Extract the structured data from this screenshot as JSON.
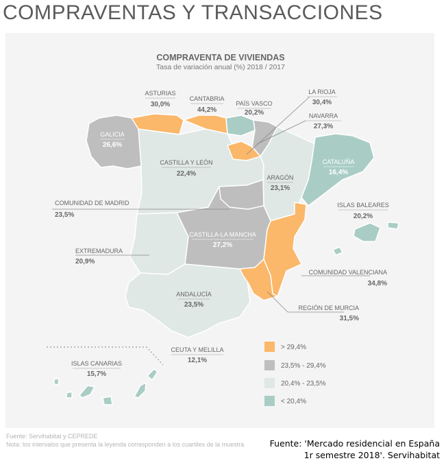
{
  "page_title": "COMPRAVENTAS Y TRANSACCIONES",
  "map": {
    "title": "COMPRAVENTA DE VIVIENDAS",
    "subtitle": "Tasa de variación anual (%) 2018 / 2017",
    "regions": [
      {
        "id": "asturias",
        "name": "ASTURIAS",
        "value": "30,0%"
      },
      {
        "id": "cantabria",
        "name": "CANTABRIA",
        "value": "44,2%"
      },
      {
        "id": "pais-vasco",
        "name": "PAÍS VASCO",
        "value": "20,2%"
      },
      {
        "id": "la-rioja",
        "name": "LA RIOJA",
        "value": "30,4%"
      },
      {
        "id": "navarra",
        "name": "NAVARRA",
        "value": "27,3%"
      },
      {
        "id": "galicia",
        "name": "GALICIA",
        "value": "26,6%"
      },
      {
        "id": "castilla-y-leon",
        "name": "CASTILLA Y LEÓN",
        "value": "22,4%"
      },
      {
        "id": "cataluna",
        "name": "CATALUÑA",
        "value": "16,4%"
      },
      {
        "id": "aragon",
        "name": "ARAGÓN",
        "value": "23,1%"
      },
      {
        "id": "islas-baleares",
        "name": "ISLAS BALEARES",
        "value": "20,2%"
      },
      {
        "id": "comunidad-de-madrid",
        "name": "COMUNIDAD DE MADRID",
        "value": "23,5%"
      },
      {
        "id": "castilla-la-mancha",
        "name": "CASTILLA-LA MANCHA",
        "value": "27,2%"
      },
      {
        "id": "extremadura",
        "name": "EXTREMADURA",
        "value": "20,9%"
      },
      {
        "id": "comunidad-valenciana",
        "name": "COMUNIDAD VALENCIANA",
        "value": "34,8%"
      },
      {
        "id": "andalucia",
        "name": "ANDALUCÍA",
        "value": "23,5%"
      },
      {
        "id": "region-de-murcia",
        "name": "REGIÓN DE MURCIA",
        "value": "31,5%"
      },
      {
        "id": "ceuta-y-melilla",
        "name": "CEUTA Y MELILLA",
        "value": "12,1%"
      },
      {
        "id": "islas-canarias",
        "name": "ISLAS CANARIAS",
        "value": "15,7%"
      }
    ],
    "legend": [
      {
        "label": "> 29,4%",
        "color": "#fbb76a"
      },
      {
        "label": "23,5% - 29,4%",
        "color": "#bebebe"
      },
      {
        "label": "20,4% - 23,5%",
        "color": "#dfe8e5"
      },
      {
        "label": "< 20,4%",
        "color": "#a9cdc5"
      }
    ]
  },
  "footnotes": {
    "source_small": "Fuente: Servihabitat y CEPREDE",
    "note": "Nota: los intervalos que presenta la leyenda corresponden a los cuartiles de la muestra"
  },
  "source_caption": {
    "line1": "Fuente: 'Mercado residencial en España",
    "line2": "1r semestre 2018'. Servihabitat"
  }
}
